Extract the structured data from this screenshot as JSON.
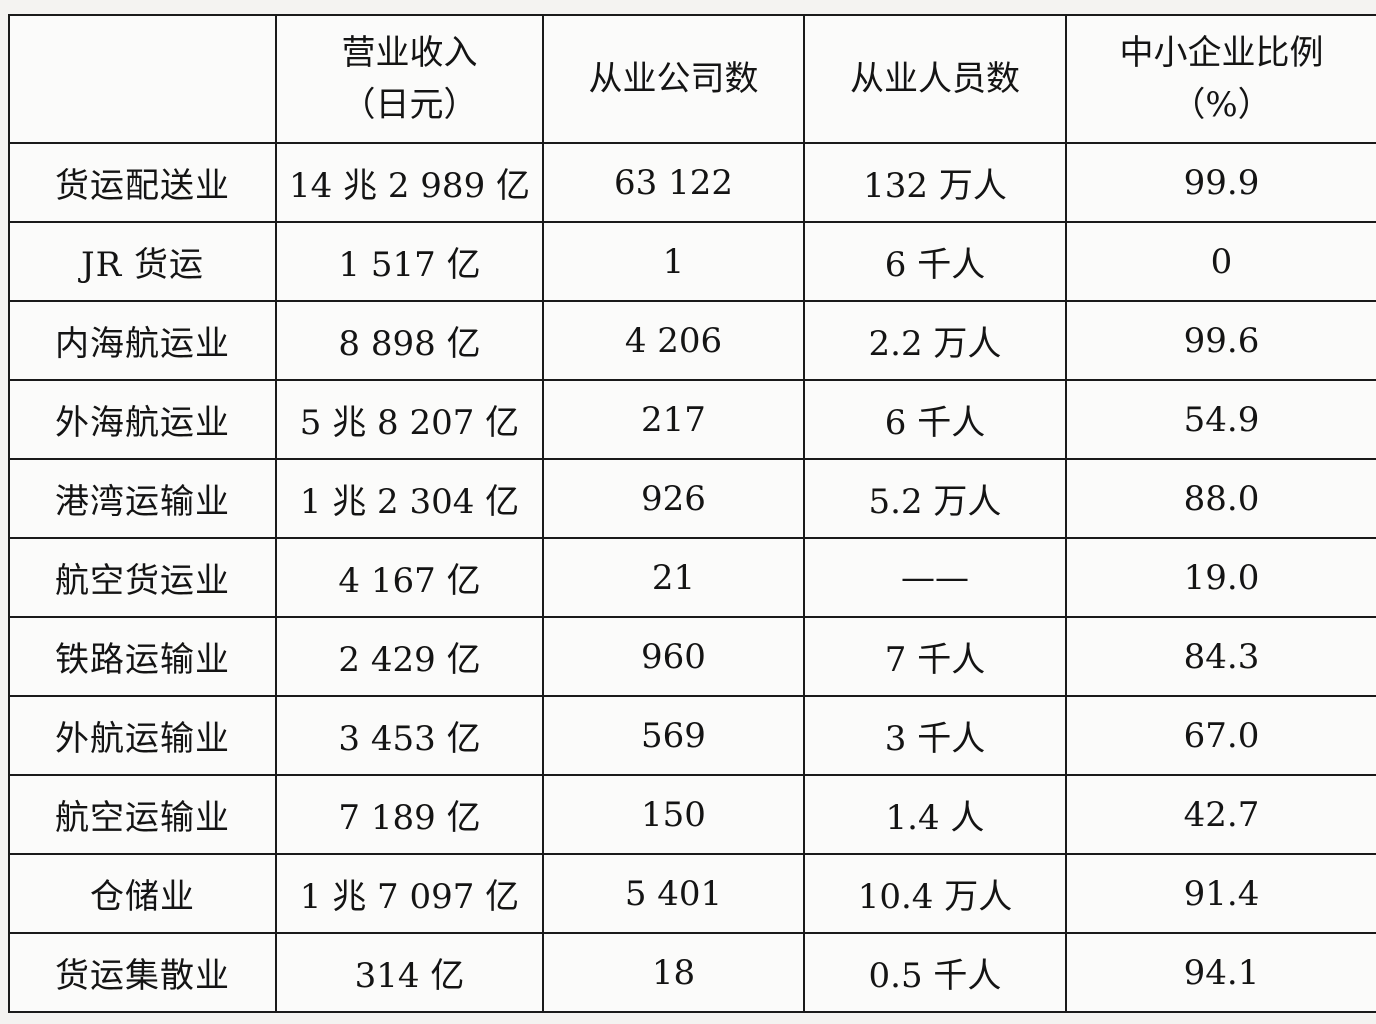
{
  "table": {
    "headers": [
      {
        "line1": "",
        "line2": ""
      },
      {
        "line1": "营业收入",
        "line2": "（日元）"
      },
      {
        "line1": "从业公司数",
        "line2": ""
      },
      {
        "line1": "从业人员数",
        "line2": ""
      },
      {
        "line1": "中小企业比例",
        "line2": "（%）"
      }
    ],
    "rows": [
      [
        "货运配送业",
        "14 兆 2 989 亿",
        "63 122",
        "132 万人",
        "99.9"
      ],
      [
        "JR 货运",
        "1 517 亿",
        "1",
        "6 千人",
        "0"
      ],
      [
        "内海航运业",
        "8 898 亿",
        "4 206",
        "2.2 万人",
        "99.6"
      ],
      [
        "外海航运业",
        "5 兆 8 207 亿",
        "217",
        "6 千人",
        "54.9"
      ],
      [
        "港湾运输业",
        "1 兆 2 304 亿",
        "926",
        "5.2 万人",
        "88.0"
      ],
      [
        "航空货运业",
        "4 167 亿",
        "21",
        "——",
        "19.0"
      ],
      [
        "铁路运输业",
        "2 429 亿",
        "960",
        "7 千人",
        "84.3"
      ],
      [
        "外航运输业",
        "3 453 亿",
        "569",
        "3 千人",
        "67.0"
      ],
      [
        "航空运输业",
        "7 189 亿",
        "150",
        "1.4 人",
        "42.7"
      ],
      [
        "仓储业",
        "1 兆 7 097 亿",
        "5 401",
        "10.4 万人",
        "91.4"
      ],
      [
        "货运集散业",
        "314 亿",
        "18",
        "0.5 千人",
        "94.1"
      ]
    ]
  }
}
